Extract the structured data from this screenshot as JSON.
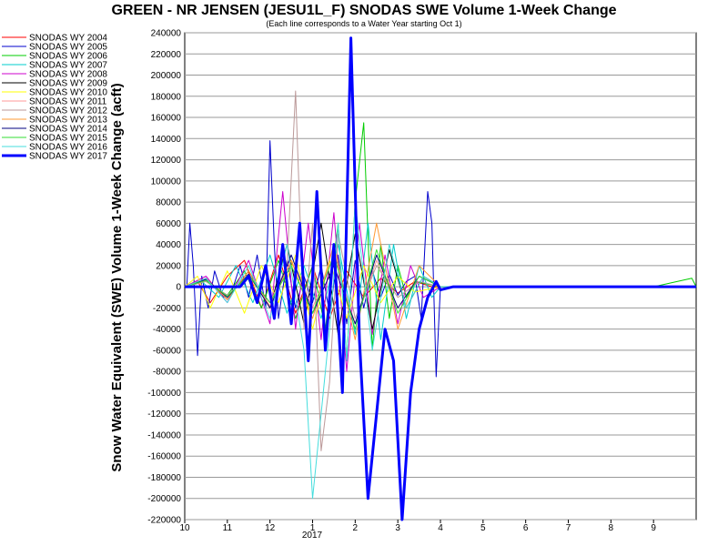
{
  "chart_data": {
    "type": "line",
    "title": "GREEN - NR JENSEN (JESU1L_F) SNODAS SWE Volume 1-Week Change",
    "subtitle": "(Each line corresponds to a Water Year starting Oct 1)",
    "ylabel": "Snow Water Equivalent (SWE) Volume 1-Week Change (acft)",
    "xlabel": "",
    "ylim": [
      -220000,
      240000
    ],
    "yticks": [
      240000,
      220000,
      200000,
      180000,
      160000,
      140000,
      120000,
      100000,
      80000,
      60000,
      40000,
      20000,
      0,
      -20000,
      -40000,
      -60000,
      -80000,
      -100000,
      -120000,
      -140000,
      -160000,
      -180000,
      -200000,
      -220000
    ],
    "ytick_labels": [
      "240000",
      "220000",
      "200000",
      "180000",
      "160000",
      "140000",
      "120000",
      "100000",
      "80000",
      "60000",
      "40000",
      "20000",
      "0",
      "-20000",
      "-40000",
      "-60000",
      "-80000",
      "-100000",
      "-120000",
      "-140000",
      "-160000",
      "-180000",
      "-200000",
      "-220000"
    ],
    "xlim": [
      0,
      12
    ],
    "xticks": [
      0,
      1,
      2,
      3,
      4,
      5,
      6,
      7,
      8,
      9,
      10,
      11
    ],
    "xtick_labels": [
      "10",
      "11",
      "12",
      "1",
      "2",
      "3",
      "4",
      "5",
      "6",
      "7",
      "8",
      "9"
    ],
    "year_label": "2017",
    "grid": "horizontal",
    "legend_position": "left",
    "series": [
      {
        "name": "SNODAS WY 2004",
        "color": "#ff0000",
        "width": 1,
        "x": [
          0,
          0.3,
          0.6,
          1.0,
          1.4,
          1.8,
          2.2,
          2.6,
          3.0,
          3.4,
          3.8,
          4.2,
          4.6,
          5.0,
          5.4,
          5.8,
          6.2,
          7,
          8,
          9,
          10,
          11,
          12
        ],
        "y": [
          0,
          5000,
          -15000,
          10000,
          25000,
          -20000,
          30000,
          -25000,
          20000,
          -30000,
          15000,
          -10000,
          8000,
          -6000,
          5000,
          0,
          0,
          0,
          0,
          0,
          0,
          0,
          0
        ]
      },
      {
        "name": "SNODAS WY 2005",
        "color": "#0000cc",
        "width": 1,
        "x": [
          0,
          0.05,
          0.12,
          0.2,
          0.3,
          0.4,
          0.55,
          0.7,
          0.9,
          1.1,
          1.3,
          1.5,
          1.7,
          1.9,
          2.0,
          2.1,
          2.2,
          2.4,
          2.6,
          2.8,
          3.0,
          3.2,
          3.4,
          3.6,
          3.8,
          4.0,
          4.2,
          4.4,
          4.6,
          4.8,
          5.0,
          5.2,
          5.4,
          5.55,
          5.7,
          5.8,
          5.9,
          6.0,
          6.2,
          7,
          8,
          9,
          10,
          11,
          12
        ],
        "y": [
          0,
          0,
          60000,
          20000,
          -65000,
          10000,
          -20000,
          15000,
          -10000,
          -5000,
          20000,
          -10000,
          30000,
          -20000,
          138000,
          40000,
          -30000,
          25000,
          -20000,
          10000,
          -15000,
          20000,
          -25000,
          30000,
          -35000,
          25000,
          -20000,
          15000,
          -10000,
          12000,
          -8000,
          5000,
          10000,
          -30000,
          90000,
          60000,
          -85000,
          0,
          0,
          0,
          0,
          0,
          0,
          0,
          0
        ]
      },
      {
        "name": "SNODAS WY 2006",
        "color": "#00cc00",
        "width": 1,
        "x": [
          0,
          0.5,
          1.0,
          1.4,
          1.8,
          2.2,
          2.6,
          3.0,
          3.3,
          3.6,
          3.8,
          4.0,
          4.2,
          4.4,
          4.6,
          4.8,
          5.0,
          5.2,
          5.4,
          6.0,
          7,
          8,
          9,
          10,
          11,
          11.9,
          12
        ],
        "y": [
          0,
          5000,
          -8000,
          15000,
          -20000,
          25000,
          -30000,
          20000,
          -40000,
          60000,
          -70000,
          80000,
          155000,
          -60000,
          40000,
          -30000,
          20000,
          -10000,
          5000,
          0,
          0,
          0,
          0,
          0,
          0,
          8000,
          0
        ]
      },
      {
        "name": "SNODAS WY 2007",
        "color": "#00cccc",
        "width": 1,
        "x": [
          0,
          0.4,
          0.8,
          1.2,
          1.6,
          2.0,
          2.4,
          2.8,
          3.2,
          3.6,
          4.0,
          4.3,
          4.6,
          4.9,
          5.2,
          5.5,
          5.8,
          6.0,
          7,
          8,
          9,
          10,
          11,
          12
        ],
        "y": [
          0,
          5000,
          -10000,
          20000,
          -15000,
          30000,
          -25000,
          20000,
          -30000,
          40000,
          -45000,
          60000,
          -50000,
          40000,
          -30000,
          20000,
          -10000,
          0,
          0,
          0,
          0,
          0,
          0,
          0
        ]
      },
      {
        "name": "SNODAS WY 2008",
        "color": "#cc00cc",
        "width": 1,
        "x": [
          0,
          0.5,
          1.0,
          1.5,
          2.0,
          2.3,
          2.6,
          2.9,
          3.2,
          3.5,
          3.8,
          4.1,
          4.4,
          4.7,
          5.0,
          5.3,
          5.6,
          6.0,
          7,
          8,
          9,
          10,
          11,
          12
        ],
        "y": [
          0,
          10000,
          -15000,
          25000,
          -35000,
          90000,
          -40000,
          60000,
          -50000,
          70000,
          -80000,
          60000,
          -45000,
          30000,
          -35000,
          20000,
          -10000,
          0,
          0,
          0,
          0,
          0,
          0,
          0
        ]
      },
      {
        "name": "SNODAS WY 2009",
        "color": "#000000",
        "width": 1,
        "x": [
          0,
          0.5,
          1.0,
          1.5,
          2.0,
          2.4,
          2.8,
          3.2,
          3.6,
          4.0,
          4.4,
          4.8,
          5.2,
          5.6,
          6.0,
          7,
          8,
          9,
          10,
          11,
          12
        ],
        "y": [
          0,
          8000,
          -12000,
          15000,
          -20000,
          40000,
          -35000,
          60000,
          -45000,
          50000,
          -40000,
          35000,
          -20000,
          10000,
          0,
          0,
          0,
          0,
          0,
          0,
          0
        ]
      },
      {
        "name": "SNODAS WY 2010",
        "color": "#ffff00",
        "width": 1,
        "x": [
          0,
          0.3,
          0.6,
          1.0,
          1.4,
          1.8,
          2.2,
          2.6,
          3.0,
          3.4,
          3.8,
          4.2,
          4.6,
          5.0,
          5.4,
          6.0,
          7,
          8,
          9,
          10,
          11,
          12
        ],
        "y": [
          0,
          10000,
          -20000,
          15000,
          -25000,
          20000,
          -15000,
          30000,
          -40000,
          25000,
          -30000,
          20000,
          -15000,
          10000,
          -5000,
          0,
          0,
          0,
          0,
          0,
          0,
          0
        ]
      },
      {
        "name": "SNODAS WY 2011",
        "color": "#ff9999",
        "width": 1,
        "x": [
          0,
          0.5,
          1.0,
          1.5,
          2.0,
          2.5,
          3.0,
          3.5,
          4.0,
          4.5,
          5.0,
          5.5,
          6.0,
          7,
          8,
          9,
          10,
          11,
          12
        ],
        "y": [
          0,
          6000,
          -10000,
          12000,
          -18000,
          25000,
          -20000,
          30000,
          -35000,
          25000,
          -20000,
          10000,
          0,
          0,
          0,
          0,
          0,
          0,
          0
        ]
      },
      {
        "name": "SNODAS WY 2012",
        "color": "#bb9999",
        "width": 1,
        "x": [
          0,
          0.5,
          1.0,
          1.5,
          2.0,
          2.4,
          2.6,
          2.8,
          3.0,
          3.2,
          3.4,
          3.6,
          4.0,
          4.5,
          5.0,
          5.5,
          6.0,
          7,
          8,
          9,
          10,
          11,
          12
        ],
        "y": [
          0,
          5000,
          -8000,
          10000,
          -15000,
          20000,
          185000,
          -40000,
          60000,
          -155000,
          -90000,
          50000,
          -30000,
          20000,
          -10000,
          5000,
          0,
          0,
          0,
          0,
          0,
          0,
          0
        ]
      },
      {
        "name": "SNODAS WY 2013",
        "color": "#ff9933",
        "width": 1,
        "x": [
          0,
          0.5,
          1.0,
          1.5,
          2.0,
          2.5,
          3.0,
          3.5,
          4.0,
          4.5,
          5.0,
          5.5,
          6.0,
          7,
          8,
          9,
          10,
          11,
          12
        ],
        "y": [
          0,
          8000,
          -12000,
          15000,
          -20000,
          25000,
          -30000,
          40000,
          -50000,
          60000,
          -40000,
          20000,
          0,
          0,
          0,
          0,
          0,
          0,
          0
        ]
      },
      {
        "name": "SNODAS WY 2014",
        "color": "#000080",
        "width": 1,
        "x": [
          0,
          0.5,
          1.0,
          1.5,
          2.0,
          2.5,
          3.0,
          3.5,
          4.0,
          4.5,
          5.0,
          5.5,
          6.0,
          7,
          8,
          9,
          10,
          11,
          12
        ],
        "y": [
          0,
          7000,
          -10000,
          12000,
          -20000,
          30000,
          -25000,
          20000,
          -35000,
          30000,
          -20000,
          10000,
          0,
          0,
          0,
          0,
          0,
          0,
          0
        ]
      },
      {
        "name": "SNODAS WY 2015",
        "color": "#33dd33",
        "width": 1,
        "x": [
          0,
          0.5,
          1.0,
          1.5,
          2.0,
          2.5,
          3.0,
          3.5,
          4.0,
          4.5,
          5.0,
          5.5,
          6.0,
          7,
          8,
          9,
          10,
          11,
          12
        ],
        "y": [
          0,
          6000,
          -9000,
          11000,
          -15000,
          20000,
          -25000,
          30000,
          -40000,
          35000,
          -25000,
          10000,
          0,
          0,
          0,
          0,
          0,
          0,
          0
        ]
      },
      {
        "name": "SNODAS WY 2016",
        "color": "#44dddd",
        "width": 1,
        "x": [
          0,
          0.5,
          1.0,
          1.5,
          2.0,
          2.4,
          2.8,
          3.0,
          3.2,
          3.4,
          3.6,
          3.8,
          4.0,
          4.4,
          4.8,
          5.2,
          5.6,
          6.0,
          7,
          8,
          9,
          10,
          11,
          12
        ],
        "y": [
          0,
          8000,
          -15000,
          20000,
          -30000,
          40000,
          -60000,
          -200000,
          -120000,
          -40000,
          60000,
          -70000,
          80000,
          -60000,
          40000,
          -20000,
          10000,
          0,
          0,
          0,
          0,
          0,
          0,
          0
        ]
      },
      {
        "name": "SNODAS WY 2017",
        "color": "#0000ff",
        "width": 3,
        "x": [
          0,
          1.3,
          1.5,
          1.7,
          1.9,
          2.1,
          2.3,
          2.5,
          2.7,
          2.9,
          3.1,
          3.3,
          3.5,
          3.7,
          3.9,
          4.1,
          4.3,
          4.5,
          4.7,
          4.9,
          5.1,
          5.3,
          5.5,
          5.7,
          5.9,
          6.0,
          6.3,
          7,
          8,
          9,
          10,
          11,
          12
        ],
        "y": [
          0,
          0,
          10000,
          -15000,
          20000,
          -30000,
          40000,
          -35000,
          60000,
          -70000,
          90000,
          -60000,
          40000,
          -100000,
          235000,
          -50000,
          -200000,
          -120000,
          -40000,
          -70000,
          -220000,
          -100000,
          -40000,
          -10000,
          5000,
          -3000,
          0,
          0,
          0,
          0,
          0,
          0,
          0
        ]
      }
    ]
  }
}
